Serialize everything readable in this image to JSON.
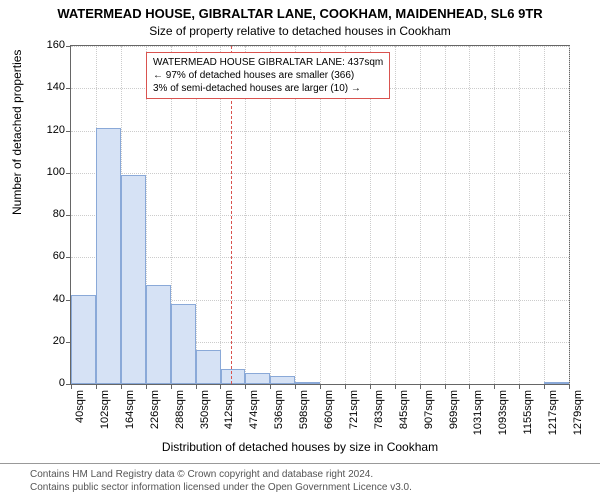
{
  "title_main": "WATERMEAD HOUSE, GIBRALTAR LANE, COOKHAM, MAIDENHEAD, SL6 9TR",
  "title_sub": "Size of property relative to detached houses in Cookham",
  "y_axis_label": "Number of detached properties",
  "x_axis_label": "Distribution of detached houses by size in Cookham",
  "chart": {
    "type": "histogram",
    "background_color": "#ffffff",
    "grid_color": "#cccccc",
    "axis_color": "#666666",
    "ylim": [
      0,
      160
    ],
    "ytick_step": 20,
    "y_ticks": [
      0,
      20,
      40,
      60,
      80,
      100,
      120,
      140,
      160
    ],
    "x_ticks": [
      "40sqm",
      "102sqm",
      "164sqm",
      "226sqm",
      "288sqm",
      "350sqm",
      "412sqm",
      "474sqm",
      "536sqm",
      "598sqm",
      "660sqm",
      "721sqm",
      "783sqm",
      "845sqm",
      "907sqm",
      "969sqm",
      "1031sqm",
      "1093sqm",
      "1155sqm",
      "1217sqm",
      "1279sqm"
    ],
    "x_min": 40,
    "x_max": 1279,
    "bar_color": "#d6e2f5",
    "bar_border_color": "#8aa9d8",
    "bars": [
      {
        "x_start": 40,
        "x_end": 102,
        "y": 42
      },
      {
        "x_start": 102,
        "x_end": 164,
        "y": 121
      },
      {
        "x_start": 164,
        "x_end": 226,
        "y": 99
      },
      {
        "x_start": 226,
        "x_end": 288,
        "y": 47
      },
      {
        "x_start": 288,
        "x_end": 350,
        "y": 38
      },
      {
        "x_start": 350,
        "x_end": 412,
        "y": 16
      },
      {
        "x_start": 412,
        "x_end": 474,
        "y": 7
      },
      {
        "x_start": 474,
        "x_end": 536,
        "y": 5
      },
      {
        "x_start": 536,
        "x_end": 598,
        "y": 4
      },
      {
        "x_start": 598,
        "x_end": 660,
        "y": 1
      },
      {
        "x_start": 1217,
        "x_end": 1279,
        "y": 1
      }
    ],
    "reference_line": {
      "x": 437,
      "color": "#d9534f",
      "dash": "dashed"
    },
    "annotation": {
      "line1": "WATERMEAD HOUSE GIBRALTAR LANE: 437sqm",
      "line2": "← 97% of detached houses are smaller (366)",
      "line3": "3% of semi-detached houses are larger (10) →",
      "border_color": "#d9534f",
      "fontsize": 10
    }
  },
  "footer": {
    "line1": "Contains HM Land Registry data © Crown copyright and database right 2024.",
    "line2": "Contains public sector information licensed under the Open Government Licence v3.0."
  }
}
